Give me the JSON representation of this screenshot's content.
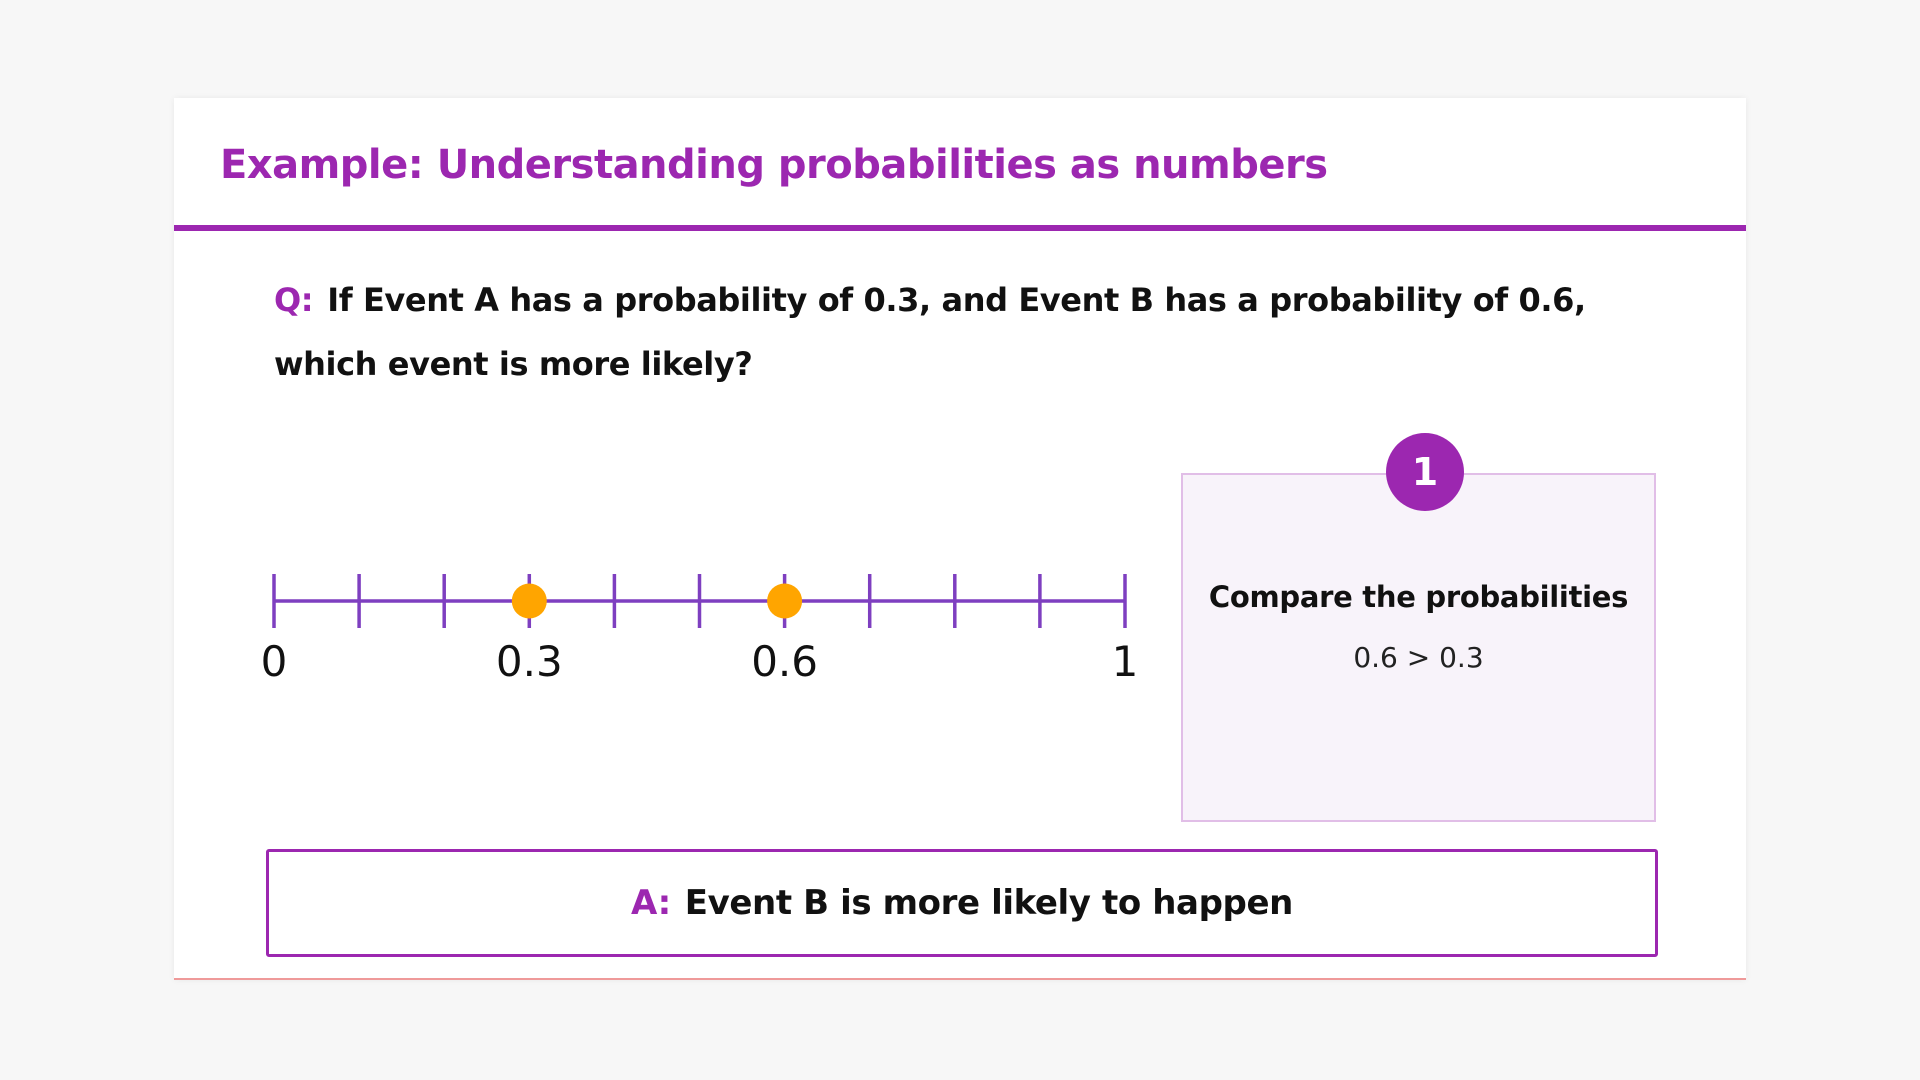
{
  "title": "Example: Understanding probabilities as numbers",
  "question": {
    "prefix": "Q:",
    "text": "If Event A has a probability of 0.3, and Event B has a probability of 0.6, which event is more likely?"
  },
  "number_line": {
    "min": 0,
    "max": 1,
    "tick_step": 0.1,
    "labels": [
      {
        "value": 0,
        "text": "0"
      },
      {
        "value": 0.3,
        "text": "0.3"
      },
      {
        "value": 0.6,
        "text": "0.6"
      },
      {
        "value": 1,
        "text": "1"
      }
    ],
    "points": [
      0.3,
      0.6
    ],
    "line_color": "#7e3fc0",
    "point_color": "#ffa500"
  },
  "step": {
    "number": "1",
    "title": "Compare the probabilities",
    "body": "0.6 > 0.3"
  },
  "answer": {
    "prefix": "A:",
    "text": "Event B is more likely to happen"
  },
  "colors": {
    "accent": "#9c27b0",
    "card_bg": "#f8f3fa",
    "card_border": "#e1bee7"
  }
}
